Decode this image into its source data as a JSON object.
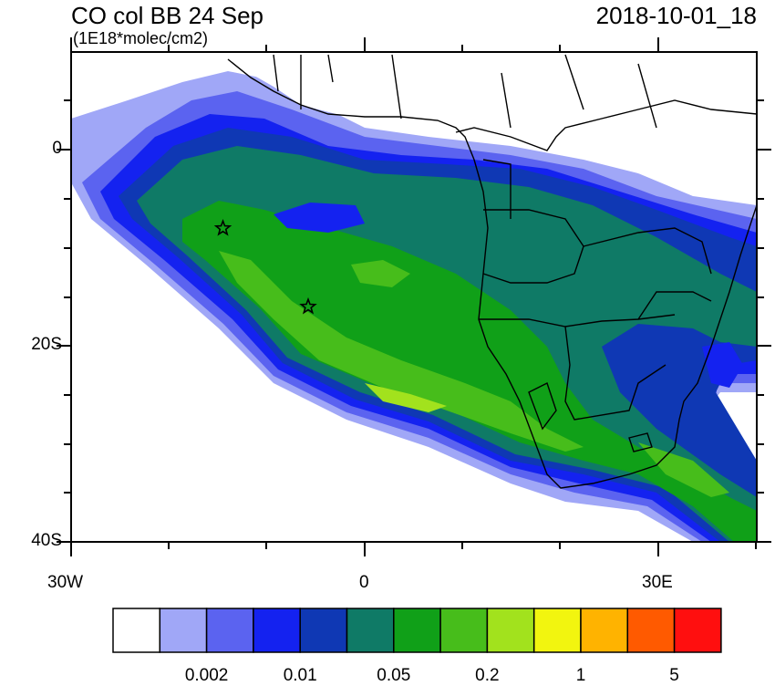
{
  "header": {
    "title": "CO col BB 24 Sep",
    "units": "(1E18*molec/cm2)",
    "datetime": "2018-10-01_18"
  },
  "axes": {
    "lat_labels": [
      "0",
      "20S",
      "40S"
    ],
    "lon_labels": [
      "30W",
      "0",
      "30E"
    ]
  },
  "markers": [
    {
      "name": "star-1",
      "lon": -14.5,
      "lat": -8
    },
    {
      "name": "star-2",
      "lon": -5.8,
      "lat": -16
    }
  ],
  "colorbar": {
    "colors": [
      "#ffffff",
      "#a0a7f7",
      "#5b63f0",
      "#1422f0",
      "#0f38b4",
      "#0f7a66",
      "#10a018",
      "#47bd1b",
      "#a2e21d",
      "#f2f50f",
      "#ffb300",
      "#ff5a00",
      "#ff0f0f"
    ],
    "tick_labels": [
      "0.002",
      "0.01",
      "0.05",
      "0.2",
      "1",
      "5"
    ]
  }
}
